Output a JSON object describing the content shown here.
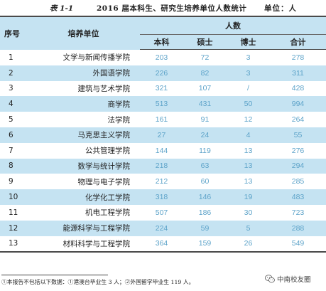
{
  "caption": {
    "number": "表 1-1",
    "title": "2016 届本科生、研究生培养单位人数统计",
    "unit": "单位：人"
  },
  "table": {
    "headers": {
      "seq": "序号",
      "unit": "培养单位",
      "count_group": "人数",
      "bachelor": "本科",
      "master": "硕士",
      "doctor": "博士",
      "total": "合计"
    },
    "rows": [
      {
        "seq": "1",
        "unit": "文学与新闻传播学院",
        "bachelor": "203",
        "master": "72",
        "doctor": "3",
        "total": "278"
      },
      {
        "seq": "2",
        "unit": "外国语学院",
        "bachelor": "226",
        "master": "82",
        "doctor": "3",
        "total": "311"
      },
      {
        "seq": "3",
        "unit": "建筑与艺术学院",
        "bachelor": "321",
        "master": "107",
        "doctor": "/",
        "total": "428"
      },
      {
        "seq": "4",
        "unit": "商学院",
        "bachelor": "513",
        "master": "431",
        "doctor": "50",
        "total": "994"
      },
      {
        "seq": "5",
        "unit": "法学院",
        "bachelor": "161",
        "master": "91",
        "doctor": "12",
        "total": "264"
      },
      {
        "seq": "6",
        "unit": "马克思主义学院",
        "bachelor": "27",
        "master": "24",
        "doctor": "4",
        "total": "55"
      },
      {
        "seq": "7",
        "unit": "公共管理学院",
        "bachelor": "144",
        "master": "119",
        "doctor": "13",
        "total": "276"
      },
      {
        "seq": "8",
        "unit": "数学与统计学院",
        "bachelor": "218",
        "master": "63",
        "doctor": "13",
        "total": "294"
      },
      {
        "seq": "9",
        "unit": "物理与电子学院",
        "bachelor": "212",
        "master": "60",
        "doctor": "13",
        "total": "285"
      },
      {
        "seq": "10",
        "unit": "化学化工学院",
        "bachelor": "318",
        "master": "146",
        "doctor": "19",
        "total": "483"
      },
      {
        "seq": "11",
        "unit": "机电工程学院",
        "bachelor": "507",
        "master": "186",
        "doctor": "30",
        "total": "723"
      },
      {
        "seq": "12",
        "unit": "能源科学与工程学院",
        "bachelor": "224",
        "master": "59",
        "doctor": "5",
        "total": "288"
      },
      {
        "seq": "13",
        "unit": "材料科学与工程学院",
        "bachelor": "364",
        "master": "159",
        "doctor": "26",
        "total": "549"
      }
    ]
  },
  "footnote": "①本报告不包括以下数据：①港澳台毕业生 3 人；②外国留学毕业生 119 人。",
  "watermark": {
    "text": "中南校友圈",
    "icon": "wechat-icon"
  },
  "colors": {
    "header_bg": "#c5e3f2",
    "stripe_bg": "#c5e3f2",
    "number_text": "#5da3c9"
  }
}
